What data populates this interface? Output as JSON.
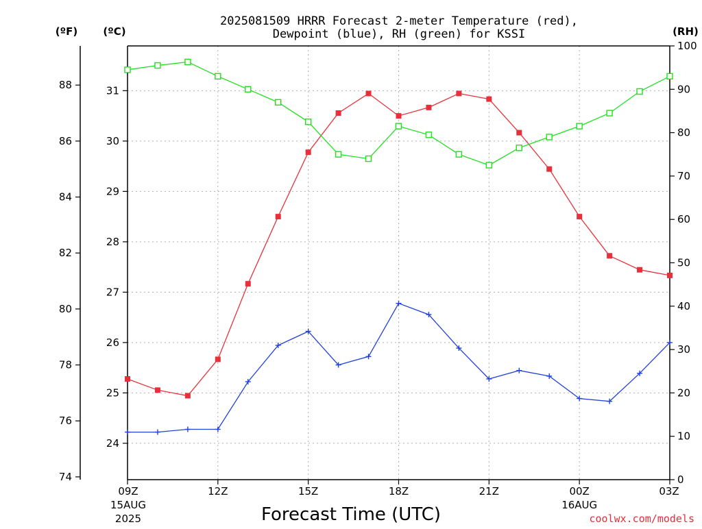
{
  "chart_data": {
    "type": "line",
    "title_line1": "2025081509 HRRR Forecast 2-meter Temperature (red),",
    "title_line2": "Dewpoint (blue), RH (green) for KSSI",
    "xlabel": "Forecast Time (UTC)",
    "credit": "coolwx.com/models",
    "axes": {
      "fahrenheit": {
        "label": "(ºF)",
        "range": [
          73.9,
          89.4
        ],
        "ticks": [
          74,
          76,
          78,
          80,
          82,
          84,
          86,
          88
        ]
      },
      "celsius": {
        "label": "(ºC)",
        "ticks": [
          24,
          25,
          26,
          27,
          28,
          29,
          30,
          31
        ]
      },
      "rh": {
        "label": "(RH)",
        "range": [
          0,
          100
        ],
        "ticks": [
          0,
          10,
          20,
          30,
          40,
          50,
          60,
          70,
          80,
          90,
          100
        ]
      }
    },
    "x_hours": [
      9,
      10,
      11,
      12,
      13,
      14,
      15,
      16,
      17,
      18,
      19,
      20,
      21,
      22,
      23,
      24,
      25,
      26,
      27
    ],
    "x_range": [
      9,
      27
    ],
    "x_ticks": [
      {
        "hour": 9,
        "label": "09Z",
        "date": "15AUG",
        "year": "2025"
      },
      {
        "hour": 12,
        "label": "12Z"
      },
      {
        "hour": 15,
        "label": "15Z"
      },
      {
        "hour": 18,
        "label": "18Z"
      },
      {
        "hour": 21,
        "label": "21Z"
      },
      {
        "hour": 24,
        "label": "00Z",
        "date": "16AUG"
      },
      {
        "hour": 27,
        "label": "03Z"
      }
    ],
    "series": [
      {
        "name": "Temperature",
        "color": "#e8303a",
        "marker": "filled-square",
        "axis": "fahrenheit",
        "values": [
          77.5,
          77.1,
          76.9,
          78.2,
          80.9,
          83.3,
          85.6,
          87.0,
          87.7,
          86.9,
          87.2,
          87.7,
          87.5,
          86.3,
          85.0,
          83.3,
          81.9,
          81.4,
          81.2
        ]
      },
      {
        "name": "Dewpoint",
        "color": "#2040e0",
        "marker": "plus",
        "axis": "fahrenheit",
        "values": [
          75.6,
          75.6,
          75.7,
          75.7,
          77.4,
          78.7,
          79.2,
          78.0,
          78.3,
          80.2,
          79.8,
          78.6,
          77.5,
          77.8,
          77.6,
          76.8,
          76.7,
          77.7,
          78.8
        ]
      },
      {
        "name": "RH",
        "color": "#20e020",
        "marker": "open-square",
        "axis": "rh",
        "values": [
          94.5,
          95.5,
          96.3,
          93.0,
          90.0,
          87.0,
          82.5,
          75.0,
          74.0,
          81.5,
          79.5,
          75.0,
          72.5,
          76.5,
          79.0,
          81.5,
          84.5,
          89.5,
          93.0
        ]
      }
    ]
  }
}
